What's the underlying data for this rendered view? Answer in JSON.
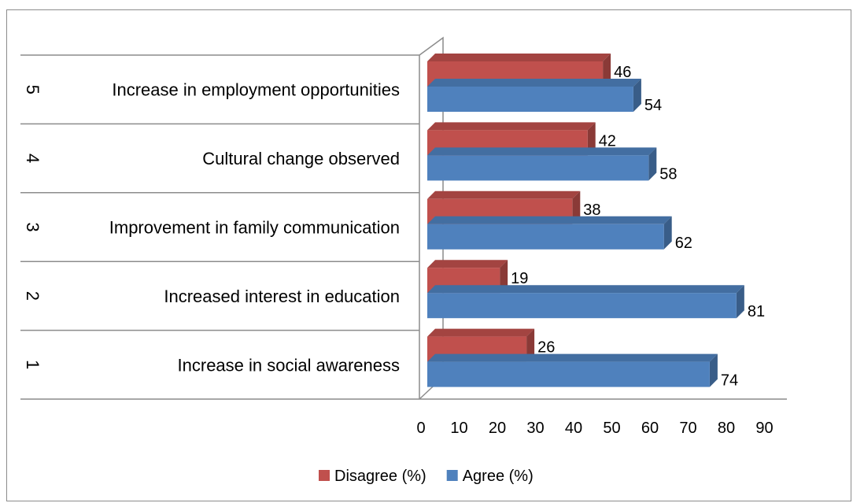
{
  "chart_data": {
    "type": "bar",
    "orientation": "horizontal",
    "style": "3d-clustered",
    "categories": [
      {
        "index": "1",
        "label": "Increase in social awareness"
      },
      {
        "index": "2",
        "label": "Increased interest in education"
      },
      {
        "index": "3",
        "label": "Improvement in family communication"
      },
      {
        "index": "4",
        "label": "Cultural change observed"
      },
      {
        "index": "5",
        "label": "Increase in employment opportunities"
      }
    ],
    "series": [
      {
        "name": "Disagree (%)",
        "color": "#C0504D",
        "values": [
          26,
          19,
          38,
          42,
          46
        ]
      },
      {
        "name": "Agree (%)",
        "color": "#4F81BD",
        "values": [
          74,
          81,
          62,
          58,
          54
        ]
      }
    ],
    "xlim": [
      0,
      90
    ],
    "xticks": [
      0,
      10,
      20,
      30,
      40,
      50,
      60,
      70,
      80,
      90
    ],
    "legend": "bottom",
    "grid": false
  }
}
